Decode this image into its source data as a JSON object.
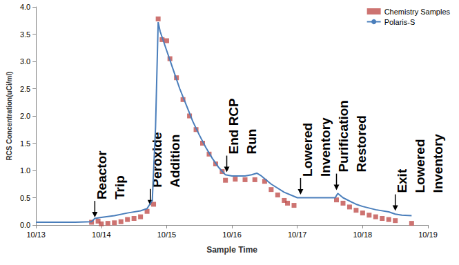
{
  "chart_data": {
    "type": "line",
    "x_label": "Sample Time",
    "y_label": "RCS Concentration(uCi/ml)",
    "xlim": [
      13,
      19
    ],
    "xticks": [
      {
        "value": 13,
        "label": "10/13"
      },
      {
        "value": 14,
        "label": "10/14"
      },
      {
        "value": 15,
        "label": "10/15"
      },
      {
        "value": 16,
        "label": "10/16"
      },
      {
        "value": 17,
        "label": "10/17"
      },
      {
        "value": 18,
        "label": "10/18"
      },
      {
        "value": 19,
        "label": "10/19"
      }
    ],
    "ylim": [
      0,
      4
    ],
    "yticks": [
      {
        "value": 0,
        "label": "0.0"
      },
      {
        "value": 0.5,
        "label": "0.5"
      },
      {
        "value": 1,
        "label": "1.0"
      },
      {
        "value": 1.5,
        "label": "1.5"
      },
      {
        "value": 2,
        "label": "2.0"
      },
      {
        "value": 2.5,
        "label": "2.5"
      },
      {
        "value": 3,
        "label": "3.0"
      },
      {
        "value": 3.5,
        "label": "3.5"
      },
      {
        "value": 4,
        "label": "4.0"
      }
    ],
    "grid": false,
    "legend": "top-right",
    "series": [
      {
        "name": "Chemistry Samples",
        "type": "scatter",
        "marker": "square",
        "color": "#c0504d",
        "x": [
          13.85,
          13.95,
          14.0,
          14.1,
          14.2,
          14.3,
          14.4,
          14.5,
          14.6,
          14.7,
          14.8,
          14.87,
          14.93,
          15.0,
          15.05,
          15.15,
          15.25,
          15.35,
          15.45,
          15.55,
          15.65,
          15.75,
          15.85,
          15.9,
          16.05,
          16.2,
          16.35,
          16.5,
          16.6,
          16.7,
          16.8,
          16.85,
          16.95,
          17.6,
          17.7,
          17.8,
          17.9,
          18.0,
          18.1,
          18.2,
          18.3,
          18.4,
          18.5,
          18.75
        ],
        "values": [
          0.05,
          0.07,
          0.02,
          0.03,
          0.04,
          0.06,
          0.1,
          0.12,
          0.15,
          0.25,
          0.38,
          3.78,
          3.4,
          3.38,
          3.05,
          2.7,
          2.3,
          2.0,
          1.75,
          1.5,
          1.3,
          1.12,
          0.98,
          0.82,
          0.84,
          0.83,
          0.83,
          0.8,
          0.65,
          0.55,
          0.45,
          0.4,
          0.36,
          0.46,
          0.4,
          0.33,
          0.27,
          0.22,
          0.18,
          0.15,
          0.12,
          0.1,
          0.08,
          0.03
        ]
      },
      {
        "name": "Polaris-S",
        "type": "line",
        "line_style": "solid",
        "color": "#4a7ebb",
        "x": [
          13.0,
          13.3,
          13.6,
          13.85,
          13.9,
          14.0,
          14.2,
          14.4,
          14.6,
          14.7,
          14.78,
          14.83,
          14.87,
          14.9,
          15.0,
          15.1,
          15.2,
          15.3,
          15.4,
          15.5,
          15.6,
          15.7,
          15.8,
          15.9,
          16.0,
          16.2,
          16.3,
          16.38,
          16.45,
          16.6,
          16.8,
          17.0,
          17.2,
          17.4,
          17.58,
          17.62,
          17.7,
          17.9,
          18.0,
          18.2,
          18.4,
          18.5,
          18.6,
          18.75
        ],
        "values": [
          0.05,
          0.05,
          0.05,
          0.06,
          0.12,
          0.14,
          0.17,
          0.22,
          0.26,
          0.3,
          0.45,
          1.8,
          3.72,
          3.55,
          3.2,
          2.85,
          2.5,
          2.2,
          1.9,
          1.65,
          1.42,
          1.22,
          1.05,
          0.92,
          0.9,
          0.9,
          0.92,
          0.95,
          0.9,
          0.75,
          0.6,
          0.5,
          0.5,
          0.5,
          0.5,
          0.58,
          0.5,
          0.38,
          0.34,
          0.28,
          0.24,
          0.2,
          0.18,
          0.17
        ]
      }
    ],
    "annotations": [
      {
        "text": [
          "Reactor",
          "Trip"
        ],
        "x": 13.9,
        "y": 0.1
      },
      {
        "text": [
          "Peroxide",
          "Addition"
        ],
        "x": 14.75,
        "y": 0.32
      },
      {
        "text": [
          "End RCP",
          "Run"
        ],
        "x": 15.92,
        "y": 0.93
      },
      {
        "text": [
          "Lowered",
          "Inventory"
        ],
        "x": 17.05,
        "y": 0.52
      },
      {
        "text": [
          "Purification",
          "Restored"
        ],
        "x": 17.6,
        "y": 0.6
      },
      {
        "text": [
          "Exit",
          "Lowered",
          "Inventory"
        ],
        "x": 18.5,
        "y": 0.22
      }
    ]
  }
}
